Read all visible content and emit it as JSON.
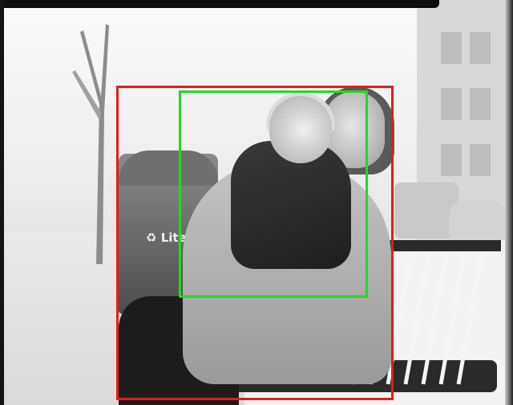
{
  "photo": {
    "trash_can_label": "Liter",
    "colors": {
      "box_red": "#e81a1a",
      "box_green": "#22d922"
    }
  },
  "overlays": {
    "boxes": [
      {
        "color": "red"
      },
      {
        "color": "green"
      }
    ]
  }
}
